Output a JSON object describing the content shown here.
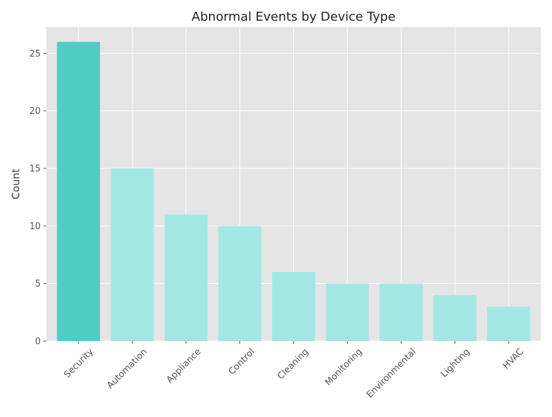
{
  "chart_data": {
    "type": "bar",
    "title": "Abnormal Events by Device Type",
    "xlabel": "",
    "ylabel": "Count",
    "categories": [
      "Security",
      "Automation",
      "Appliance",
      "Control",
      "Cleaning",
      "Monitoring",
      "Environmental",
      "Lighting",
      "HVAC"
    ],
    "values": [
      26,
      15,
      11,
      10,
      6,
      5,
      5,
      4,
      3
    ],
    "ylim": [
      0,
      27.3
    ],
    "yticks": [
      0,
      5,
      10,
      15,
      20,
      25
    ],
    "grid": true,
    "highlight_color": "#4ECDC4",
    "bar_color": "#A3E7E5",
    "plot_background": "#E5E5E5"
  }
}
